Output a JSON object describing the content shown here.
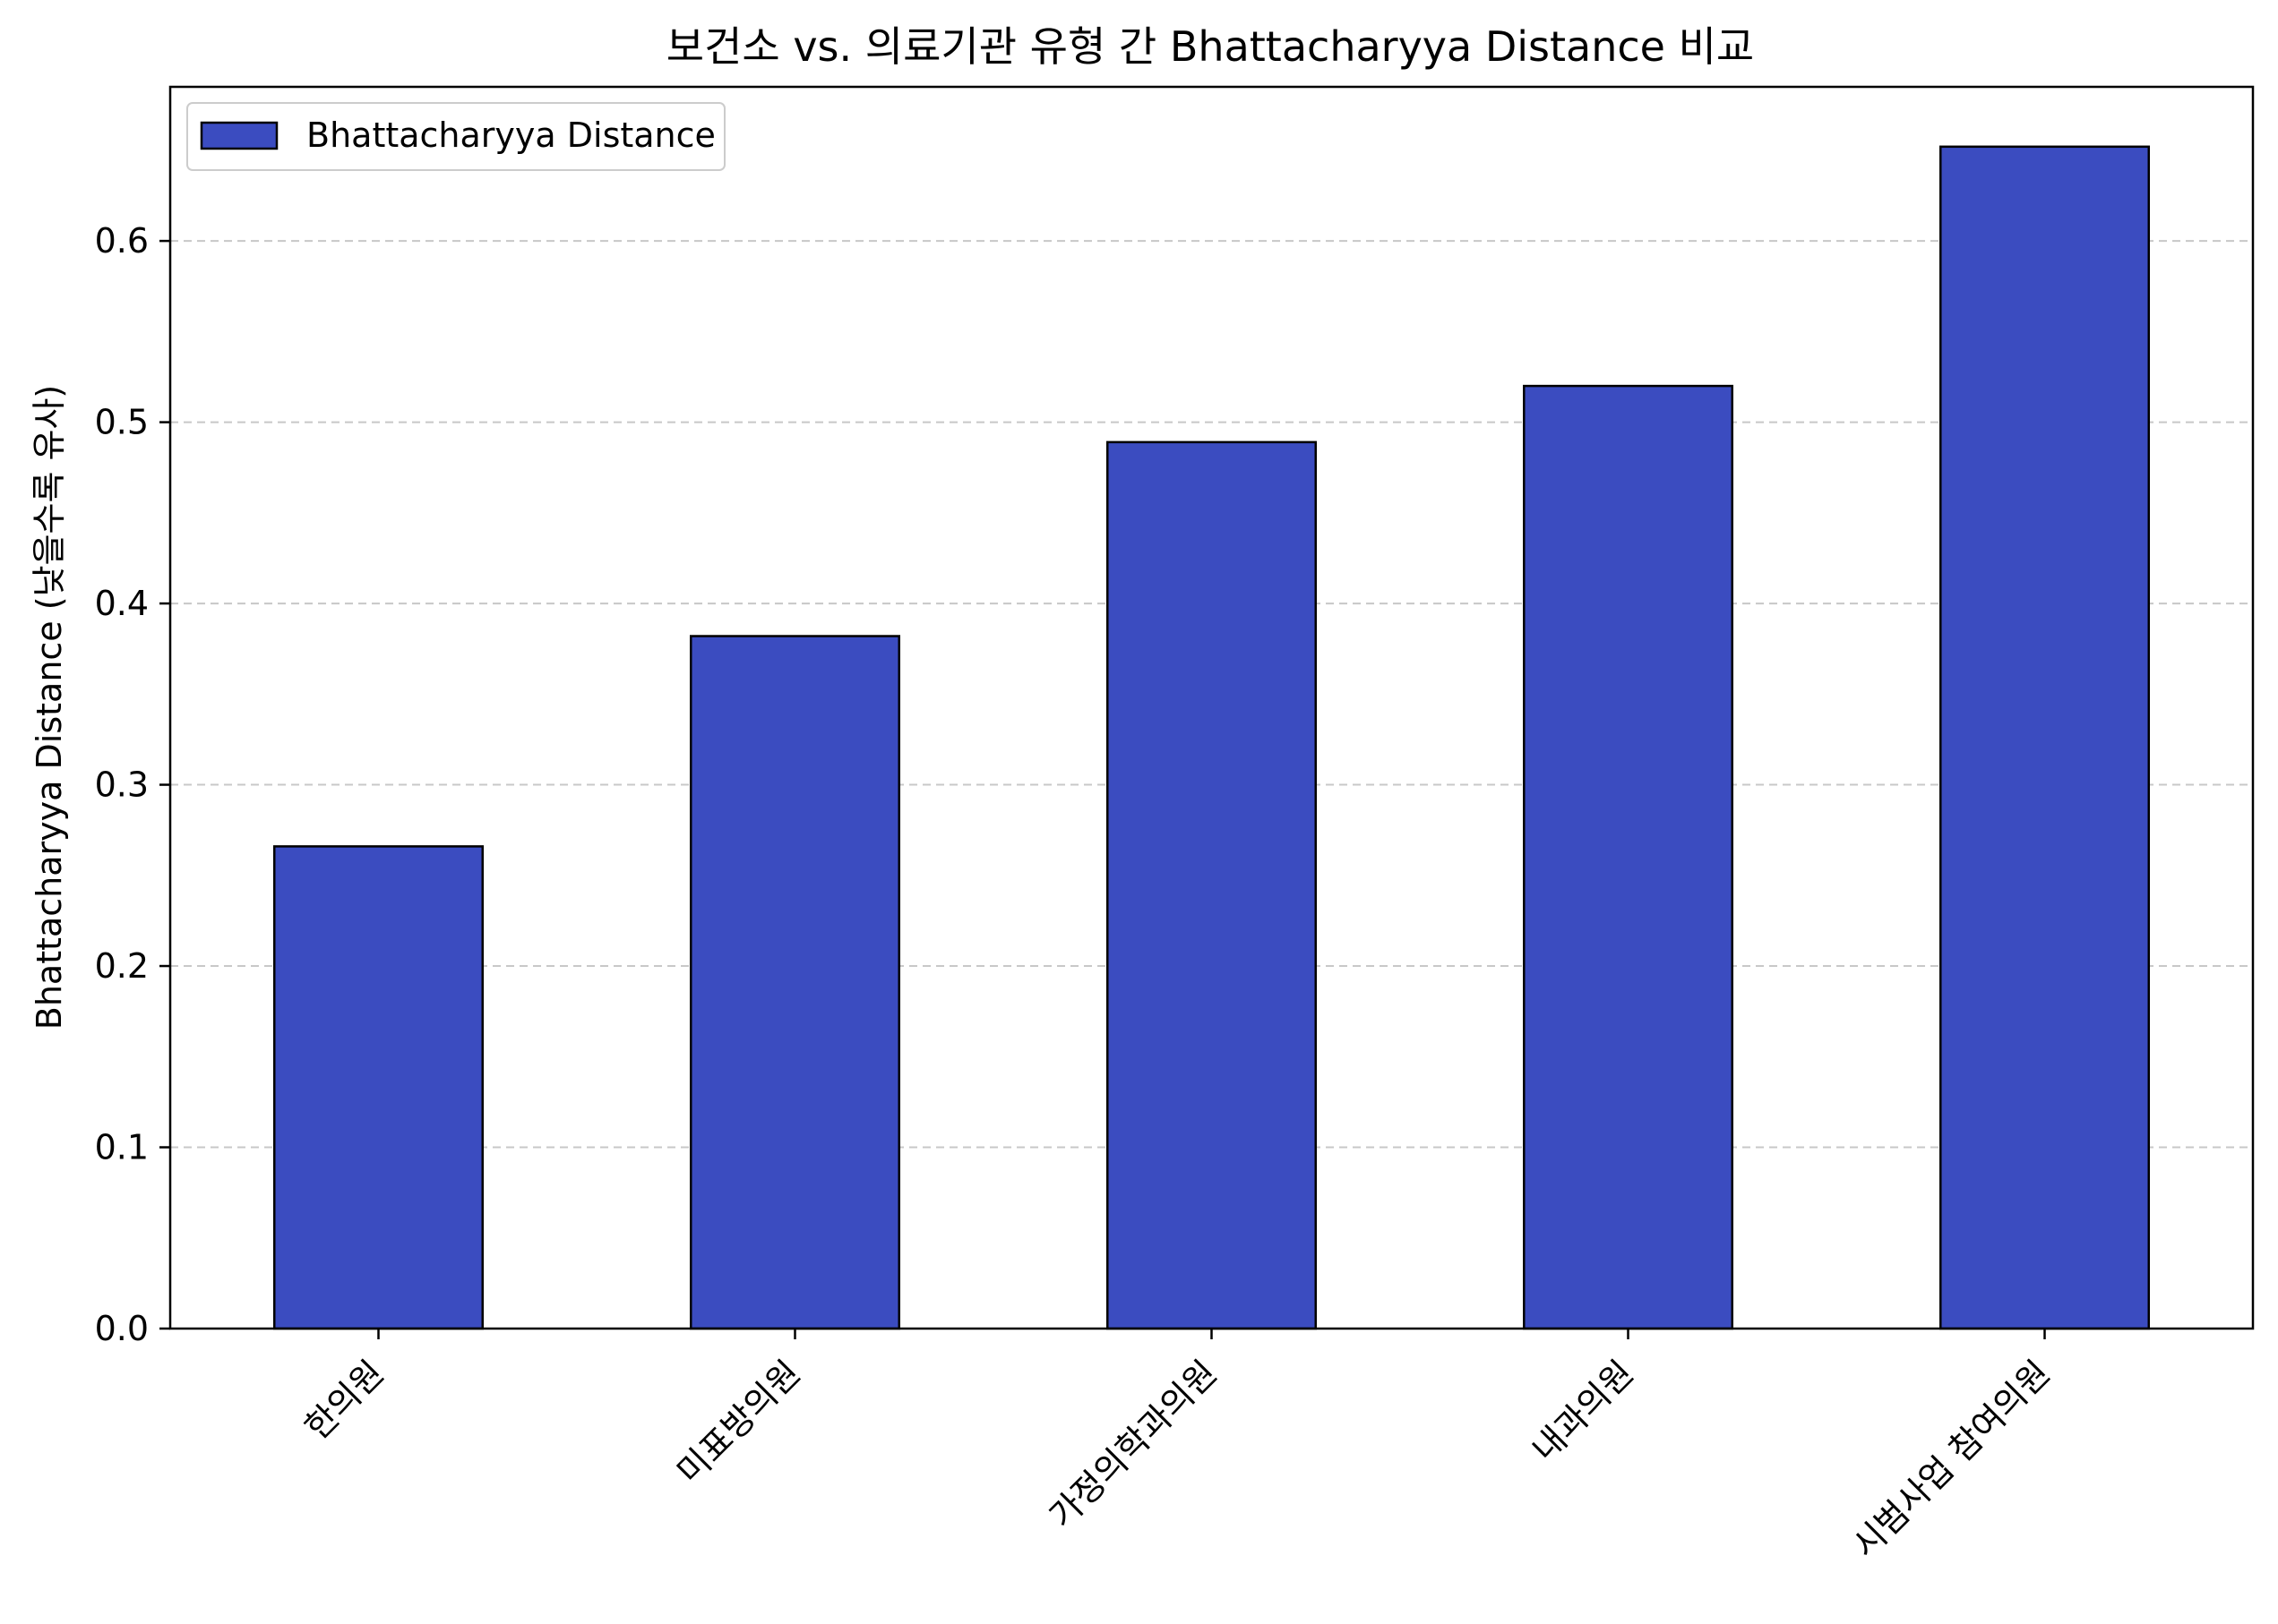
{
  "chart_data": {
    "type": "bar",
    "title": "보건소 vs. 의료기관 유형 간 Bhattacharyya Distance 비교",
    "xlabel": "",
    "ylabel": "Bhattacharyya Distance (낮을수록 유사)",
    "categories": [
      "한의원",
      "미표방의원",
      "가정의학과의원",
      "내과의원",
      "시범사업 참여의원"
    ],
    "series": [
      {
        "name": "Bhattacharyya Distance",
        "values": [
          0.266,
          0.382,
          0.489,
          0.52,
          0.652
        ],
        "color": "#3b4cc0"
      }
    ],
    "ylim": [
      0,
      0.685
    ],
    "yticks": [
      "0.0",
      "0.1",
      "0.2",
      "0.3",
      "0.4",
      "0.5",
      "0.6"
    ],
    "grid": "y-dashed",
    "legend_position": "top-left",
    "bar_edge_color": "#000000",
    "grid_color": "#c8c8c8"
  }
}
